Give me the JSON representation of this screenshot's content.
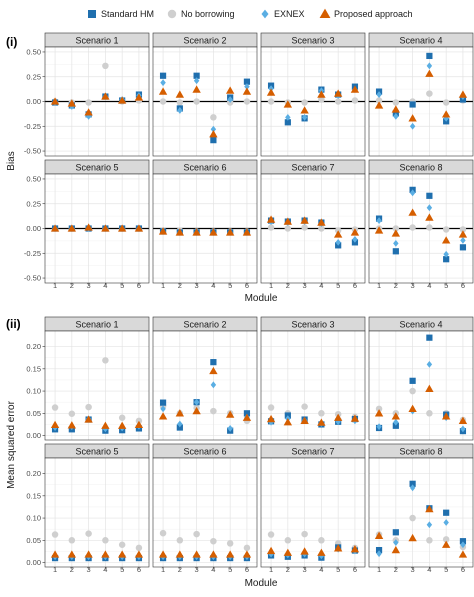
{
  "legend": [
    {
      "name": "Standard HM",
      "shape": "square",
      "color": "#1f6fae"
    },
    {
      "name": "No borrowing",
      "shape": "circle",
      "color": "#cfcfcf"
    },
    {
      "name": "EXNEX",
      "shape": "diamond",
      "color": "#5aaee3"
    },
    {
      "name": "Proposed approach",
      "shape": "triangle",
      "color": "#d55e00"
    }
  ],
  "chart_data": [
    {
      "type": "scatter",
      "label": "(i)",
      "ylabel": "Bias",
      "xlabel": "Module",
      "x": [
        1,
        2,
        3,
        4,
        5,
        6
      ],
      "x_tick_labels": [
        "1",
        "2",
        "3",
        "4",
        "5",
        "6"
      ],
      "ylim": [
        -0.55,
        0.55
      ],
      "y_ticks": [
        -0.5,
        -0.25,
        0,
        0.25,
        0.5
      ],
      "y_tick_labels": [
        "-0.50",
        "-0.25",
        "0.00",
        "0.25",
        "0.50"
      ],
      "reference_line": 0,
      "grid": true,
      "legend_position": "top",
      "panels": [
        {
          "title": "Scenario 1",
          "series": {
            "Standard HM": [
              -0.01,
              -0.04,
              -0.13,
              0.05,
              0.01,
              0.07
            ],
            "No borrowing": [
              0.0,
              -0.01,
              -0.01,
              0.36,
              0.0,
              0.01
            ],
            "EXNEX": [
              -0.01,
              -0.05,
              -0.15,
              0.05,
              0.02,
              0.06
            ],
            "Proposed approach": [
              0.0,
              -0.02,
              -0.11,
              0.05,
              0.01,
              0.04
            ]
          }
        },
        {
          "title": "Scenario 2",
          "series": {
            "Standard HM": [
              0.26,
              -0.07,
              0.26,
              -0.39,
              0.04,
              0.2
            ],
            "No borrowing": [
              0.0,
              -0.01,
              0.0,
              -0.16,
              -0.01,
              0.0
            ],
            "EXNEX": [
              0.19,
              -0.09,
              0.21,
              -0.28,
              0.02,
              0.15
            ],
            "Proposed approach": [
              0.1,
              0.07,
              0.12,
              -0.33,
              0.11,
              0.1
            ]
          }
        },
        {
          "title": "Scenario 3",
          "series": {
            "Standard HM": [
              0.16,
              -0.21,
              -0.17,
              0.12,
              0.07,
              0.15
            ],
            "No borrowing": [
              0.0,
              -0.01,
              -0.01,
              0.02,
              0.0,
              0.01
            ],
            "EXNEX": [
              0.13,
              -0.16,
              -0.16,
              0.11,
              0.06,
              0.12
            ],
            "Proposed approach": [
              0.09,
              -0.03,
              -0.09,
              0.07,
              0.08,
              0.12
            ]
          }
        },
        {
          "title": "Scenario 4",
          "series": {
            "Standard HM": [
              0.1,
              -0.12,
              -0.03,
              0.46,
              -0.2,
              0.02
            ],
            "No borrowing": [
              0.01,
              -0.01,
              0.0,
              0.08,
              -0.01,
              0.01
            ],
            "EXNEX": [
              0.07,
              -0.15,
              -0.25,
              0.36,
              -0.17,
              0.05
            ],
            "Proposed approach": [
              -0.04,
              -0.08,
              -0.17,
              0.28,
              -0.13,
              0.07
            ]
          }
        },
        {
          "title": "Scenario 5",
          "series": {
            "Standard HM": [
              0.0,
              0.0,
              0.0,
              0.0,
              0.0,
              0.0
            ],
            "No borrowing": [
              0.0,
              0.0,
              0.0,
              0.0,
              0.0,
              0.0
            ],
            "EXNEX": [
              0.0,
              0.0,
              0.0,
              0.0,
              0.0,
              0.0
            ],
            "Proposed approach": [
              0.0,
              0.0,
              0.01,
              0.0,
              0.0,
              0.0
            ]
          }
        },
        {
          "title": "Scenario 6",
          "series": {
            "Standard HM": [
              -0.03,
              -0.04,
              -0.04,
              -0.04,
              -0.04,
              -0.04
            ],
            "No borrowing": [
              -0.02,
              -0.02,
              -0.03,
              -0.03,
              -0.03,
              -0.03
            ],
            "EXNEX": [
              -0.03,
              -0.04,
              -0.04,
              -0.04,
              -0.04,
              -0.04
            ],
            "Proposed approach": [
              -0.03,
              -0.04,
              -0.04,
              -0.04,
              -0.04,
              -0.04
            ]
          }
        },
        {
          "title": "Scenario 7",
          "series": {
            "Standard HM": [
              0.08,
              0.07,
              0.08,
              0.06,
              -0.17,
              -0.14
            ],
            "No borrowing": [
              0.01,
              0.0,
              0.01,
              0.0,
              -0.02,
              -0.01
            ],
            "EXNEX": [
              0.07,
              0.06,
              0.07,
              0.05,
              -0.14,
              -0.11
            ],
            "Proposed approach": [
              0.09,
              0.07,
              0.08,
              0.06,
              -0.06,
              -0.04
            ]
          }
        },
        {
          "title": "Scenario 8",
          "series": {
            "Standard HM": [
              0.1,
              -0.23,
              0.39,
              0.33,
              -0.31,
              -0.19
            ],
            "No borrowing": [
              0.0,
              0.0,
              0.01,
              0.01,
              -0.01,
              -0.01
            ],
            "EXNEX": [
              0.08,
              -0.15,
              0.36,
              0.21,
              -0.26,
              -0.12
            ],
            "Proposed approach": [
              -0.02,
              -0.05,
              0.16,
              0.11,
              -0.12,
              -0.06
            ]
          }
        }
      ]
    },
    {
      "type": "scatter",
      "label": "(ii)",
      "ylabel": "Mean squared error",
      "xlabel": "Module",
      "x": [
        1,
        2,
        3,
        4,
        5,
        6
      ],
      "x_tick_labels": [
        "1",
        "2",
        "3",
        "4",
        "5",
        "6"
      ],
      "ylim": [
        -0.01,
        0.235
      ],
      "y_ticks": [
        0.0,
        0.05,
        0.1,
        0.15,
        0.2
      ],
      "y_tick_labels": [
        "0.00",
        "0.05",
        "0.10",
        "0.15",
        "0.20"
      ],
      "grid": true,
      "panels": [
        {
          "title": "Scenario 1",
          "series": {
            "Standard HM": [
              0.014,
              0.014,
              0.036,
              0.011,
              0.012,
              0.016
            ],
            "No borrowing": [
              0.063,
              0.049,
              0.064,
              0.169,
              0.04,
              0.033
            ],
            "EXNEX": [
              0.018,
              0.02,
              0.037,
              0.015,
              0.017,
              0.021
            ],
            "Proposed approach": [
              0.024,
              0.023,
              0.036,
              0.022,
              0.022,
              0.024
            ]
          }
        },
        {
          "title": "Scenario 2",
          "series": {
            "Standard HM": [
              0.074,
              0.018,
              0.075,
              0.165,
              0.011,
              0.05
            ],
            "No borrowing": [
              0.066,
              0.05,
              0.062,
              0.055,
              0.05,
              0.033
            ],
            "EXNEX": [
              0.06,
              0.026,
              0.075,
              0.114,
              0.016,
              0.041
            ],
            "Proposed approach": [
              0.043,
              0.05,
              0.055,
              0.145,
              0.047,
              0.04
            ]
          }
        },
        {
          "title": "Scenario 3",
          "series": {
            "Standard HM": [
              0.032,
              0.045,
              0.036,
              0.025,
              0.031,
              0.037
            ],
            "No borrowing": [
              0.063,
              0.05,
              0.065,
              0.05,
              0.048,
              0.042
            ],
            "EXNEX": [
              0.03,
              0.038,
              0.034,
              0.027,
              0.031,
              0.033
            ],
            "Proposed approach": [
              0.037,
              0.03,
              0.033,
              0.029,
              0.04,
              0.038
            ]
          }
        },
        {
          "title": "Scenario 4",
          "series": {
            "Standard HM": [
              0.017,
              0.022,
              0.123,
              0.22,
              0.047,
              0.01
            ],
            "No borrowing": [
              0.06,
              0.05,
              0.1,
              0.05,
              0.05,
              0.035
            ],
            "EXNEX": [
              0.02,
              0.03,
              0.055,
              0.16,
              0.04,
              0.015
            ],
            "Proposed approach": [
              0.05,
              0.043,
              0.06,
              0.105,
              0.043,
              0.033
            ]
          }
        },
        {
          "title": "Scenario 5",
          "series": {
            "Standard HM": [
              0.01,
              0.01,
              0.01,
              0.01,
              0.01,
              0.01
            ],
            "No borrowing": [
              0.063,
              0.05,
              0.065,
              0.05,
              0.04,
              0.033
            ],
            "EXNEX": [
              0.013,
              0.013,
              0.013,
              0.013,
              0.013,
              0.013
            ],
            "Proposed approach": [
              0.018,
              0.018,
              0.018,
              0.018,
              0.018,
              0.018
            ]
          }
        },
        {
          "title": "Scenario 6",
          "series": {
            "Standard HM": [
              0.01,
              0.01,
              0.01,
              0.01,
              0.01,
              0.01
            ],
            "No borrowing": [
              0.066,
              0.05,
              0.064,
              0.048,
              0.043,
              0.033
            ],
            "EXNEX": [
              0.013,
              0.013,
              0.013,
              0.013,
              0.013,
              0.013
            ],
            "Proposed approach": [
              0.018,
              0.018,
              0.018,
              0.018,
              0.018,
              0.018
            ]
          }
        },
        {
          "title": "Scenario 7",
          "series": {
            "Standard HM": [
              0.016,
              0.013,
              0.016,
              0.011,
              0.034,
              0.027
            ],
            "No borrowing": [
              0.063,
              0.05,
              0.064,
              0.05,
              0.043,
              0.033
            ],
            "EXNEX": [
              0.019,
              0.017,
              0.019,
              0.015,
              0.03,
              0.026
            ],
            "Proposed approach": [
              0.026,
              0.022,
              0.025,
              0.022,
              0.032,
              0.03
            ]
          }
        },
        {
          "title": "Scenario 8",
          "series": {
            "Standard HM": [
              0.028,
              0.068,
              0.177,
              0.122,
              0.112,
              0.048
            ],
            "No borrowing": [
              0.063,
              0.05,
              0.1,
              0.05,
              0.052,
              0.035
            ],
            "EXNEX": [
              0.02,
              0.045,
              0.168,
              0.085,
              0.09,
              0.04
            ],
            "Proposed approach": [
              0.06,
              0.028,
              0.055,
              0.12,
              0.04,
              0.018
            ]
          }
        }
      ]
    }
  ]
}
